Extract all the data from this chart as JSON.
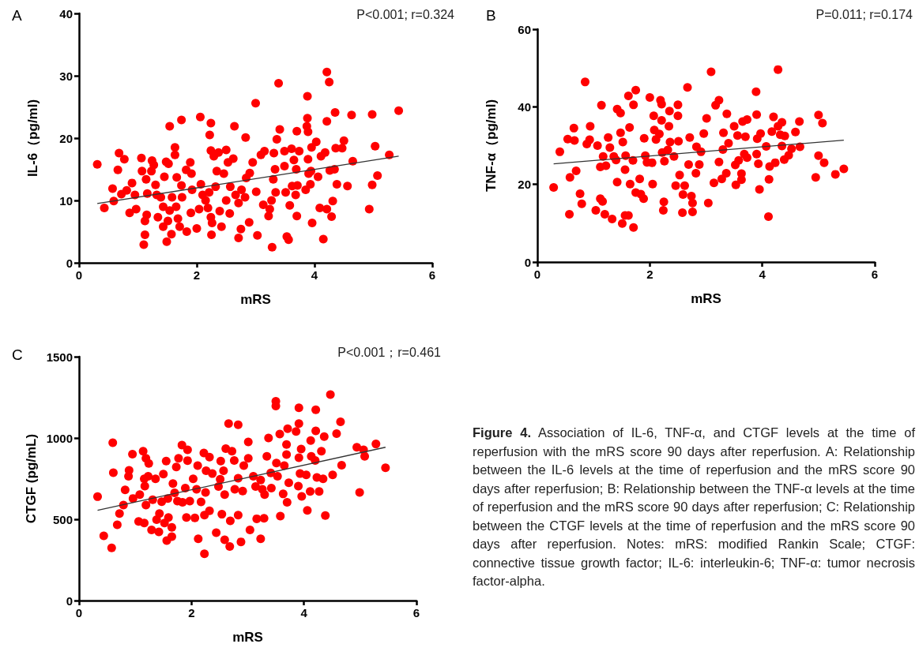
{
  "chart_data": [
    {
      "type": "scatter",
      "title": "A",
      "xlabel": "mRS",
      "ylabel": "IL-6（pg/ml)",
      "annotations": [
        "P<0.001; r=0.324"
      ],
      "xlim": [
        0,
        6
      ],
      "ylim": [
        0,
        40
      ],
      "xticks": [
        0,
        2,
        4,
        6
      ],
      "yticks": [
        0,
        10,
        20,
        30,
        40
      ],
      "marker": "circle",
      "series": [
        {
          "color": "#ff0000",
          "x": [
            0.31,
            0.43,
            0.57,
            0.59,
            0.68,
            0.66,
            0.77,
            0.72,
            0.81,
            0.9,
            0.86,
            0.95,
            0.97,
            1.06,
            1.07,
            1.1,
            1.12,
            1.12,
            1.15,
            1.16,
            1.14,
            1.23,
            1.24,
            1.27,
            1.3,
            1.32,
            1.34,
            1.39,
            1.43,
            1.45,
            1.48,
            1.52,
            1.54,
            1.49,
            1.43,
            1.51,
            1.54,
            1.57,
            1.58,
            1.63,
            1.63,
            1.65,
            1.66,
            1.68,
            1.71,
            1.74,
            1.74,
            1.75,
            1.82,
            1.83,
            1.89,
            1.9,
            1.91,
            1.92,
            2.0,
            2.04,
            2.06,
            2.07,
            2.1,
            2.15,
            2.19,
            2.21,
            2.22,
            2.24,
            2.24,
            2.24,
            2.25,
            2.26,
            2.29,
            2.32,
            2.34,
            2.37,
            2.39,
            2.42,
            2.46,
            2.5,
            2.5,
            2.53,
            2.56,
            2.57,
            2.62,
            2.64,
            2.66,
            2.71,
            2.71,
            2.76,
            2.75,
            2.82,
            2.83,
            2.84,
            2.89,
            2.9,
            2.95,
            3.0,
            3.01,
            3.03,
            3.09,
            3.13,
            3.15,
            3.22,
            3.24,
            3.27,
            3.28,
            3.3,
            3.31,
            3.33,
            3.34,
            3.36,
            3.39,
            3.41,
            3.49,
            3.49,
            3.51,
            3.53,
            3.56,
            3.58,
            3.61,
            3.62,
            3.65,
            3.68,
            3.69,
            3.7,
            3.7,
            3.71,
            3.74,
            3.85,
            3.88,
            3.88,
            3.87,
            3.89,
            3.89,
            3.9,
            3.93,
            3.94,
            3.95,
            3.96,
            4.03,
            4.06,
            4.09,
            4.11,
            4.15,
            4.18,
            4.21,
            4.21,
            4.21,
            4.25,
            4.26,
            4.29,
            4.31,
            4.34,
            4.35,
            4.36,
            4.38,
            4.47,
            4.5,
            4.56,
            4.63,
            4.65,
            4.93,
            4.98,
            4.98,
            5.03,
            5.07,
            5.27,
            5.43
          ],
          "values": [
            15.8,
            8.8,
            11.9,
            9.9,
            17.6,
            14.9,
            16.6,
            11.0,
            11.6,
            12.8,
            8.0,
            10.9,
            8.6,
            16.8,
            14.7,
            2.9,
            4.5,
            6.7,
            7.7,
            11.1,
            13.4,
            14.7,
            16.4,
            15.7,
            12.5,
            10.9,
            7.3,
            10.5,
            9.0,
            13.8,
            16.2,
            15.9,
            21.9,
            3.4,
            5.8,
            6.7,
            8.4,
            4.6,
            10.5,
            18.5,
            17.3,
            9.0,
            13.7,
            7.1,
            5.8,
            22.9,
            12.4,
            10.5,
            14.9,
            5.0,
            16.1,
            8.0,
            14.3,
            11.7,
            5.5,
            8.6,
            23.4,
            12.6,
            10.9,
            10.0,
            8.8,
            11.3,
            20.5,
            22.4,
            7.3,
            18.0,
            4.5,
            6.4,
            17.1,
            12.2,
            14.7,
            17.7,
            8.3,
            5.8,
            14.3,
            18.1,
            10.0,
            16.1,
            7.9,
            12.2,
            16.7,
            21.9,
            10.9,
            4.0,
            9.6,
            11.7,
            5.4,
            10.5,
            20.1,
            13.6,
            6.5,
            14.4,
            16.1,
            25.6,
            11.4,
            4.4,
            17.3,
            9.3,
            17.9,
            7.5,
            8.6,
            10.0,
            2.5,
            13.4,
            17.6,
            15.0,
            11.3,
            19.8,
            28.8,
            21.4,
            15.5,
            17.9,
            11.3,
            4.2,
            3.7,
            9.2,
            18.3,
            12.3,
            16.5,
            10.9,
            15.0,
            7.5,
            21.1,
            12.4,
            17.9,
            11.7,
            26.7,
            23.2,
            21.9,
            21.0,
            16.6,
            14.3,
            12.6,
            14.7,
            18.5,
            6.4,
            19.4,
            13.8,
            8.8,
            17.1,
            3.8,
            17.7,
            30.6,
            22.7,
            8.6,
            29.0,
            14.8,
            7.4,
            9.9,
            15.0,
            24.1,
            18.4,
            12.6,
            18.4,
            19.6,
            12.3,
            23.7,
            16.3,
            8.6,
            23.8,
            12.5,
            18.7,
            14.0,
            17.3,
            24.4
          ]
        },
        {
          "type": "line",
          "marker": "none",
          "color": "#333333",
          "x": [
            0.31,
            5.43
          ],
          "values": [
            9.5,
            17.1
          ]
        }
      ]
    },
    {
      "type": "scatter",
      "title": "B",
      "xlabel": "mRS",
      "ylabel": "TNF-α（pg/ml)",
      "annotations": [
        "P=0.011; r=0.174"
      ],
      "xlim": [
        0,
        6
      ],
      "ylim": [
        0,
        60
      ],
      "xticks": [
        0,
        2,
        4,
        6
      ],
      "yticks": [
        0,
        20,
        40,
        60
      ],
      "marker": "circle",
      "series": [
        {
          "color": "#ff0000",
          "x": [
            0.29,
            0.4,
            0.54,
            0.57,
            0.58,
            0.65,
            0.66,
            0.69,
            0.76,
            0.79,
            0.85,
            0.88,
            0.93,
            0.94,
            1.04,
            1.07,
            1.12,
            1.12,
            1.14,
            1.16,
            1.17,
            1.2,
            1.22,
            1.26,
            1.29,
            1.33,
            1.36,
            1.4,
            1.42,
            1.42,
            1.48,
            1.48,
            1.51,
            1.52,
            1.56,
            1.56,
            1.57,
            1.62,
            1.62,
            1.64,
            1.65,
            1.7,
            1.71,
            1.71,
            1.75,
            1.75,
            1.82,
            1.84,
            1.89,
            1.9,
            1.92,
            1.95,
            2.0,
            2.04,
            2.05,
            2.07,
            2.08,
            2.11,
            2.17,
            2.19,
            2.21,
            2.21,
            2.22,
            2.24,
            2.25,
            2.26,
            2.32,
            2.34,
            2.35,
            2.36,
            2.43,
            2.46,
            2.5,
            2.5,
            2.51,
            2.53,
            2.58,
            2.59,
            2.62,
            2.67,
            2.69,
            2.71,
            2.74,
            2.76,
            2.76,
            2.82,
            2.83,
            2.88,
            2.91,
            2.96,
            3.01,
            3.04,
            3.09,
            3.14,
            3.17,
            3.23,
            3.23,
            3.28,
            3.3,
            3.31,
            3.36,
            3.37,
            3.4,
            3.5,
            3.52,
            3.53,
            3.56,
            3.58,
            3.63,
            3.63,
            3.65,
            3.68,
            3.7,
            3.73,
            3.73,
            3.89,
            3.9,
            3.9,
            3.93,
            3.95,
            3.97,
            3.91,
            4.07,
            4.11,
            4.12,
            4.13,
            4.17,
            4.2,
            4.23,
            4.28,
            4.28,
            4.32,
            4.35,
            4.35,
            4.4,
            4.39,
            4.47,
            4.52,
            4.59,
            4.66,
            4.67,
            4.95,
            5.0,
            5.0,
            5.07,
            5.1,
            5.3,
            5.45
          ],
          "values": [
            19.2,
            28.4,
            31.7,
            12.3,
            21.8,
            34.5,
            31.3,
            23.5,
            17.6,
            15.0,
            46.4,
            30.4,
            31.5,
            35.0,
            13.3,
            30.0,
            24.5,
            16.3,
            40.4,
            15.6,
            27.2,
            12.3,
            24.8,
            32.1,
            29.5,
            11.1,
            27.2,
            26.3,
            20.6,
            39.4,
            38.4,
            33.3,
            9.9,
            30.9,
            23.8,
            12.0,
            27.4,
            42.8,
            12.0,
            34.7,
            20.1,
            26.2,
            8.9,
            40.5,
            44.3,
            17.9,
            21.4,
            17.5,
            16.3,
            31.9,
            27.4,
            25.7,
            42.4,
            25.6,
            20.1,
            37.7,
            34.0,
            31.6,
            33.0,
            41.7,
            40.7,
            36.5,
            28.2,
            13.3,
            15.5,
            26.0,
            28.9,
            35.0,
            38.9,
            30.9,
            27.2,
            19.7,
            40.5,
            37.7,
            31.1,
            22.4,
            12.7,
            17.4,
            19.7,
            45.0,
            25.1,
            32.1,
            17.0,
            15.2,
            12.9,
            22.9,
            29.7,
            25.1,
            28.4,
            33.1,
            37.0,
            15.2,
            49.0,
            20.4,
            40.4,
            41.7,
            25.8,
            21.4,
            29.0,
            33.3,
            22.9,
            38.2,
            30.6,
            35.0,
            25.0,
            19.9,
            32.6,
            26.2,
            22.8,
            21.2,
            36.2,
            27.8,
            32.3,
            36.7,
            26.9,
            43.9,
            38.0,
            27.8,
            25.3,
            18.7,
            33.1,
            31.8,
            29.8,
            11.7,
            21.3,
            24.6,
            33.6,
            37.4,
            25.6,
            49.6,
            35.0,
            32.8,
            36.0,
            29.9,
            32.5,
            26.4,
            27.5,
            29.2,
            33.5,
            36.2,
            29.7,
            21.8,
            27.4,
            37.9,
            35.8,
            25.6,
            22.6,
            24.0
          ]
        },
        {
          "type": "line",
          "marker": "none",
          "color": "#333333",
          "x": [
            0.29,
            5.45
          ],
          "values": [
            25.3,
            31.4
          ]
        }
      ]
    },
    {
      "type": "scatter",
      "title": "C",
      "xlabel": "mRS",
      "ylabel": "CTGF (pg/mL)",
      "annotations": [
        "P<0.001；r=0.461"
      ],
      "xlim": [
        0,
        6
      ],
      "ylim": [
        0,
        1500
      ],
      "xticks": [
        0,
        2,
        4,
        6
      ],
      "yticks": [
        0,
        500,
        1000,
        1500
      ],
      "marker": "circle",
      "series": [
        {
          "color": "#ff0000",
          "x": [
            0.33,
            0.44,
            0.58,
            0.6,
            0.61,
            0.68,
            0.72,
            0.79,
            0.82,
            0.89,
            0.88,
            0.95,
            0.96,
            1.08,
            1.06,
            1.14,
            1.16,
            1.17,
            1.16,
            1.19,
            1.19,
            1.24,
            1.23,
            1.29,
            1.31,
            1.36,
            1.38,
            1.42,
            1.43,
            1.47,
            1.5,
            1.52,
            1.55,
            1.56,
            1.58,
            1.59,
            1.65,
            1.65,
            1.67,
            1.7,
            1.73,
            1.75,
            1.77,
            1.83,
            1.84,
            1.89,
            1.91,
            1.93,
            1.93,
            1.97,
            2.03,
            2.06,
            2.09,
            2.11,
            2.12,
            2.17,
            2.22,
            2.23,
            2.23,
            2.25,
            2.26,
            2.32,
            2.32,
            2.37,
            2.44,
            2.48,
            2.51,
            2.52,
            2.54,
            2.57,
            2.59,
            2.59,
            2.61,
            2.66,
            2.68,
            2.69,
            2.72,
            2.76,
            2.77,
            2.83,
            2.83,
            2.83,
            2.88,
            2.91,
            2.93,
            3.01,
            3.01,
            3.04,
            3.1,
            3.14,
            3.16,
            3.23,
            3.23,
            3.26,
            3.29,
            3.3,
            3.34,
            3.37,
            3.41,
            3.42,
            3.5,
            3.5,
            3.51,
            3.53,
            3.57,
            3.58,
            3.63,
            3.65,
            3.69,
            3.69,
            3.7,
            3.71,
            3.73,
            3.86,
            3.9,
            3.91,
            3.91,
            3.91,
            3.93,
            3.95,
            3.96,
            4.04,
            4.06,
            4.11,
            4.12,
            4.13,
            4.2,
            4.21,
            4.21,
            4.23,
            4.27,
            4.31,
            4.34,
            4.36,
            4.38,
            4.51,
            4.58,
            4.65,
            4.67,
            4.47,
            4.94,
            4.99,
            5.06,
            5.08,
            5.28,
            5.45
          ],
          "values": [
            639,
            398,
            324,
            971,
            786,
            466,
            535,
            587,
            681,
            801,
            765,
            900,
            628,
            652,
            487,
            919,
            749,
            704,
            477,
            587,
            875,
            843,
            765,
            434,
            620,
            749,
            498,
            422,
            535,
            608,
            778,
            477,
            858,
            369,
            628,
            511,
            450,
            393,
            720,
            663,
            822,
            612,
            875,
            956,
            604,
            692,
            511,
            927,
            861,
            612,
            749,
            508,
            684,
            830,
            380,
            607,
            908,
            526,
            288,
            665,
            798,
            882,
            552,
            781,
            417,
            701,
            746,
            858,
            531,
            798,
            374,
            652,
            935,
            1089,
            333,
            490,
            919,
            862,
            684,
            1081,
            526,
            752,
            361,
            673,
            830,
            875,
            976,
            434,
            765,
            701,
            503,
            741,
            380,
            684,
            506,
            652,
            887,
            1000,
            785,
            692,
            1226,
            1197,
            846,
            765,
            1024,
            519,
            656,
            830,
            898,
            960,
            604,
            1057,
            725,
            1040,
            704,
            1186,
            1089,
            879,
            781,
            932,
            641,
            773,
            555,
            671,
            984,
            887,
            862,
            1044,
            1173,
            757,
            671,
            919,
            749,
            1008,
            523,
            773,
            1027,
            1100,
            833,
            1267,
            943,
            665,
            927,
            887,
            963,
            817
          ]
        },
        {
          "type": "line",
          "marker": "none",
          "color": "#333333",
          "x": [
            0.33,
            5.45
          ],
          "values": [
            555,
            943
          ]
        }
      ]
    },
    {
      "type": "other",
      "annotations": [
        "Figure 4.",
        "Association of IL-6, TNF-α, and CTGF levels at the time of reperfusion with the mRS score 90 days after reperfusion. A: Relationship between the IL-6 levels at the time of reperfusion and the mRS score 90 days after reperfusion; B: Relationship between the TNF-α levels at the time of reperfusion and the mRS score 90 days after reperfusion; C: Relationship between the CTGF levels at the time of reperfusion and the mRS score 90 days after reperfusion. Notes: mRS: modified Rankin Scale; CTGF: connective tissue growth factor; IL-6: interleukin-6; TNF-α: tumor necrosis factor-alpha."
      ]
    }
  ]
}
